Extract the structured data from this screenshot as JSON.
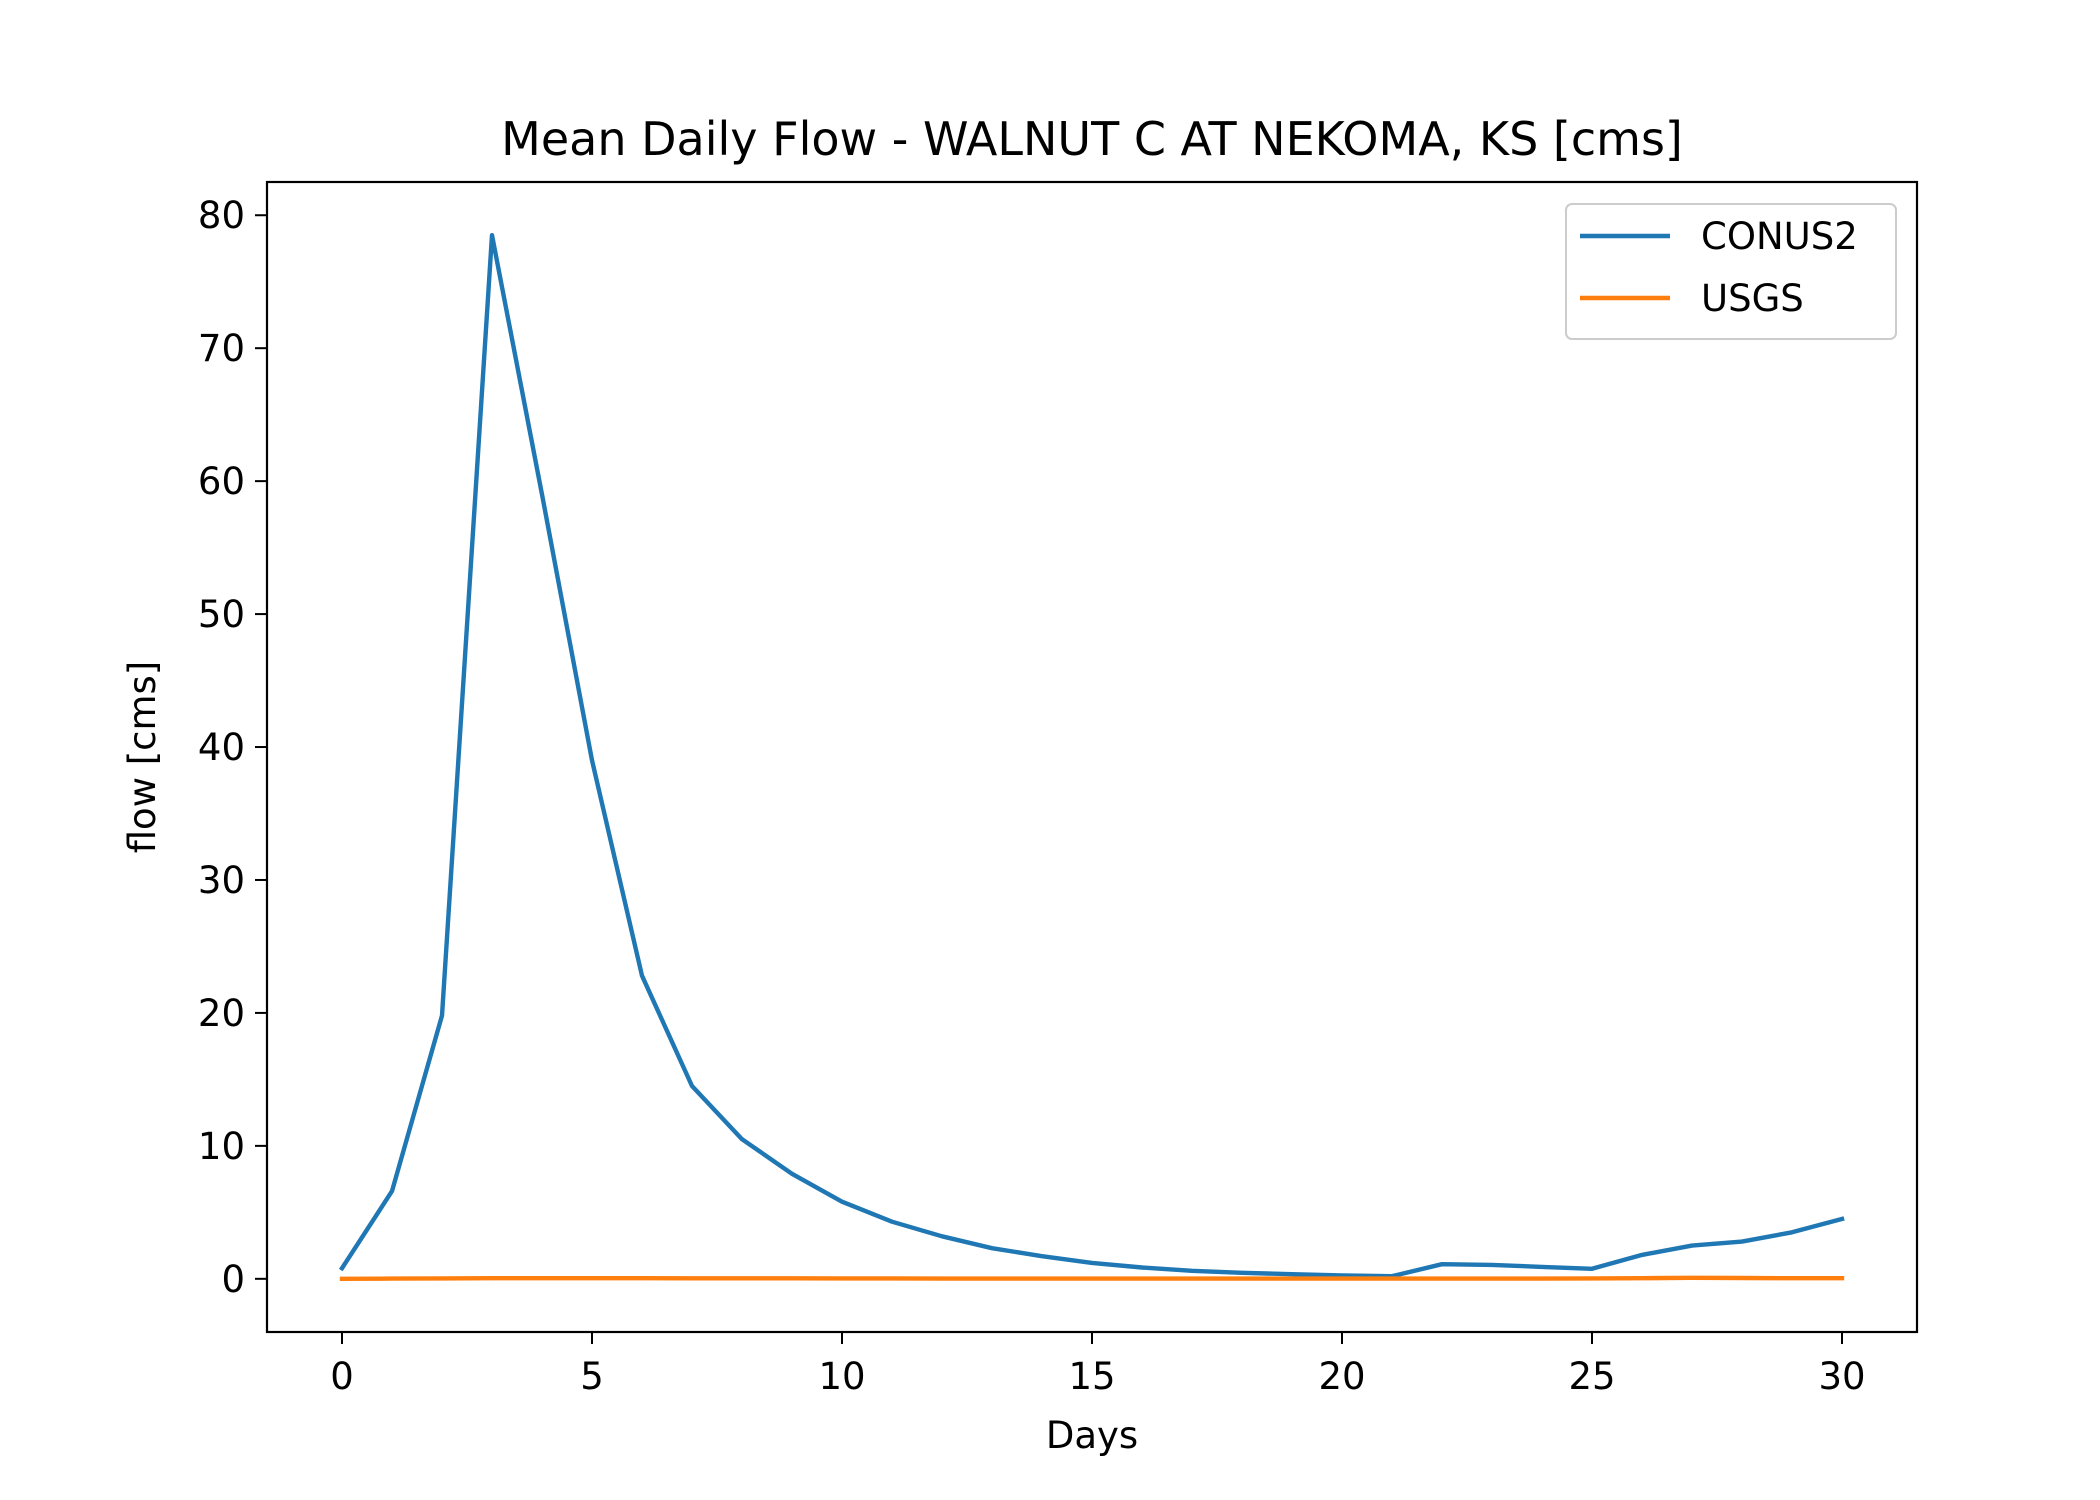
{
  "chart_data": {
    "type": "line",
    "title": "Mean Daily Flow - WALNUT C AT NEKOMA, KS [cms]",
    "xlabel": "Days",
    "ylabel": "flow [cms]",
    "xlim": [
      -1.5,
      31.5
    ],
    "ylim": [
      -4,
      82.5
    ],
    "xticks": [
      0,
      5,
      10,
      15,
      20,
      25,
      30
    ],
    "yticks": [
      0,
      10,
      20,
      30,
      40,
      50,
      60,
      70,
      80
    ],
    "grid": false,
    "legend_position": "top-right",
    "x": [
      0,
      1,
      2,
      3,
      4,
      5,
      6,
      7,
      8,
      9,
      10,
      11,
      12,
      13,
      14,
      15,
      16,
      17,
      18,
      19,
      20,
      21,
      22,
      23,
      24,
      25,
      26,
      27,
      28,
      29,
      30
    ],
    "series": [
      {
        "name": "CONUS2",
        "color": "#1f77b4",
        "values": [
          0.8,
          6.6,
          19.8,
          78.5,
          59.0,
          39.0,
          22.8,
          14.5,
          10.5,
          7.9,
          5.8,
          4.3,
          3.2,
          2.3,
          1.7,
          1.2,
          0.85,
          0.6,
          0.45,
          0.35,
          0.25,
          0.2,
          1.1,
          1.05,
          0.9,
          0.75,
          1.8,
          2.5,
          2.8,
          3.5,
          4.5
        ]
      },
      {
        "name": "USGS",
        "color": "#ff7f0e",
        "values": [
          0.0,
          0.02,
          0.03,
          0.05,
          0.05,
          0.05,
          0.05,
          0.04,
          0.04,
          0.04,
          0.03,
          0.03,
          0.02,
          0.02,
          0.02,
          0.02,
          0.02,
          0.02,
          0.02,
          0.02,
          0.02,
          0.02,
          0.02,
          0.02,
          0.02,
          0.03,
          0.05,
          0.08,
          0.06,
          0.05,
          0.05
        ]
      }
    ]
  }
}
